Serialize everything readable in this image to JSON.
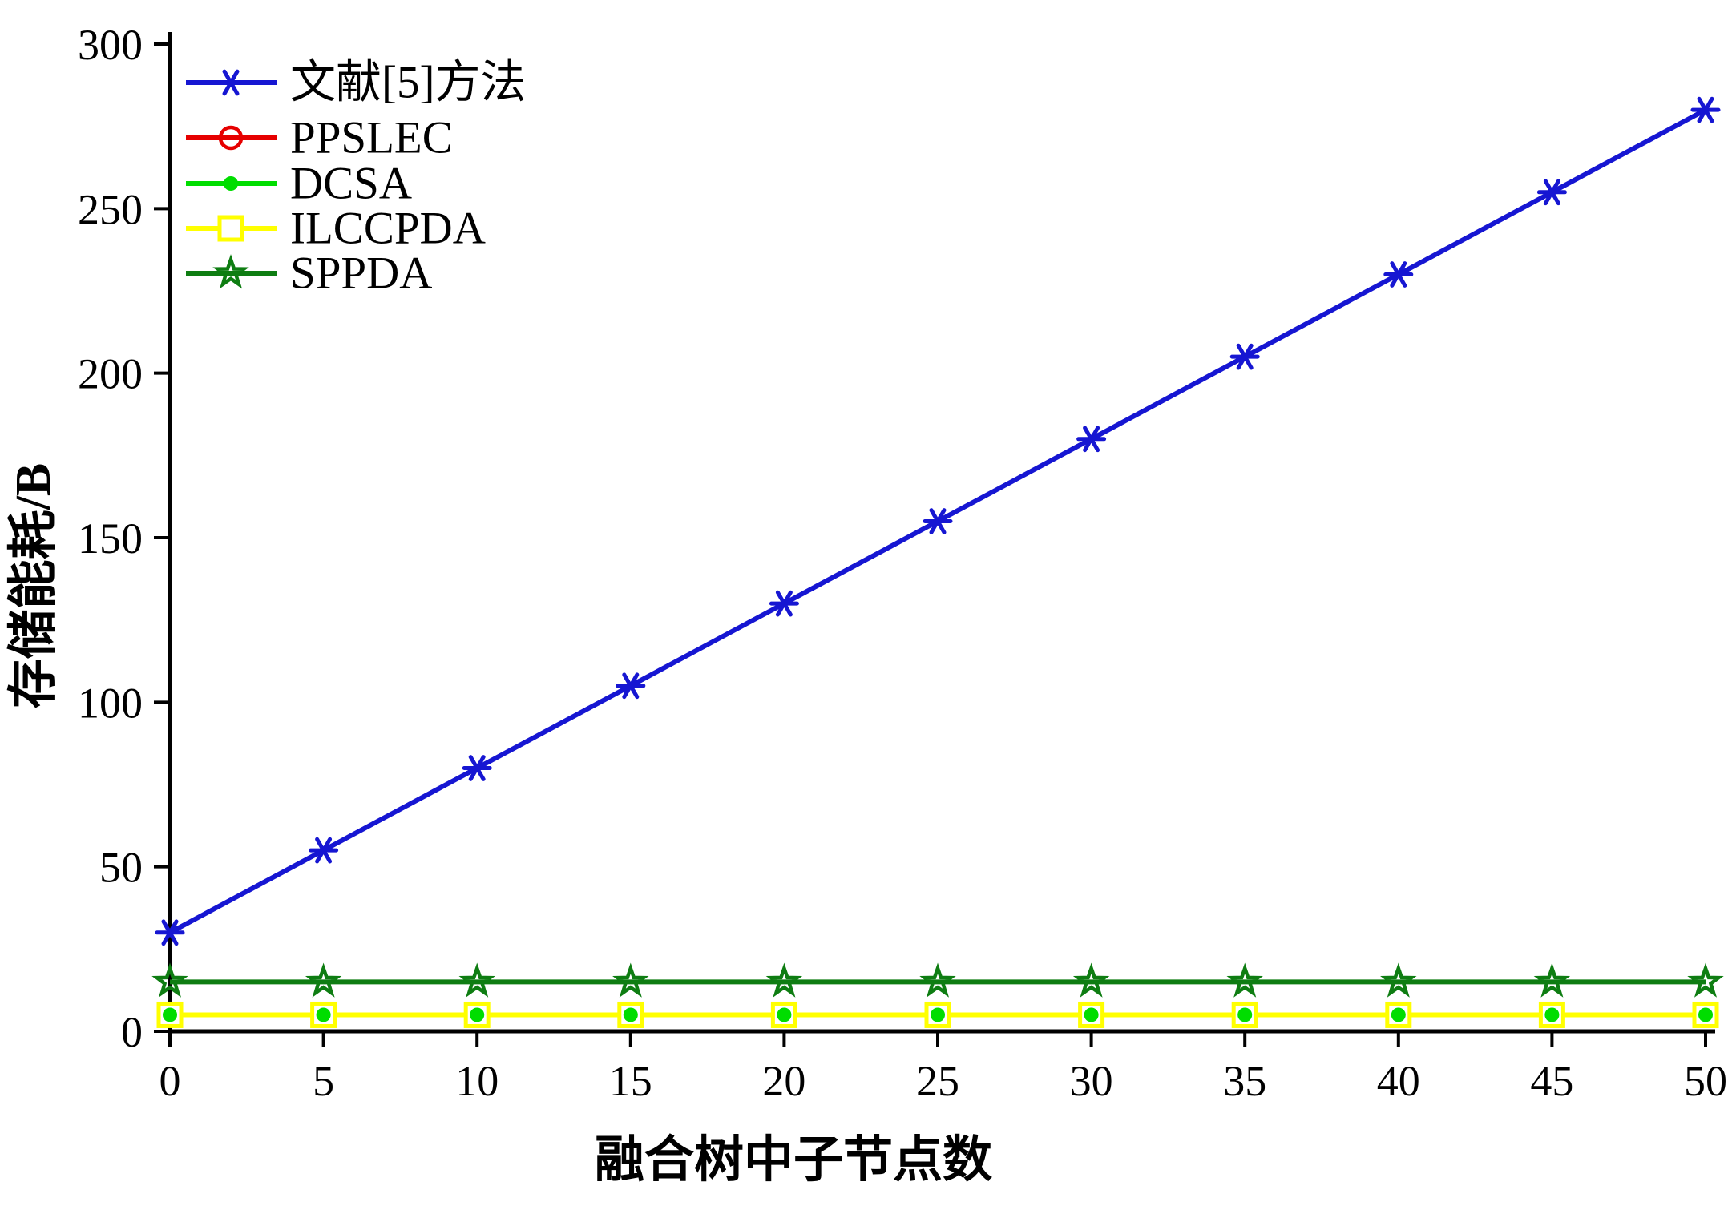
{
  "chart_data": {
    "type": "line",
    "title": "",
    "xlabel": "融合树中子节点数",
    "ylabel": "存储能耗/B",
    "xlim": [
      0,
      50
    ],
    "ylim": [
      0,
      300
    ],
    "xticks": [
      0,
      5,
      10,
      15,
      20,
      25,
      30,
      35,
      40,
      45,
      50
    ],
    "yticks": [
      0,
      50,
      100,
      150,
      200,
      250,
      300
    ],
    "grid": false,
    "legend_position": "top-left",
    "x": [
      0,
      5,
      10,
      15,
      20,
      25,
      30,
      35,
      40,
      45,
      50
    ],
    "series": [
      {
        "name": "文献[5]方法",
        "color": "#1616d2",
        "marker": "asterisk",
        "values": [
          30,
          55,
          80,
          105,
          130,
          155,
          180,
          205,
          230,
          255,
          280
        ]
      },
      {
        "name": "PPSLEC",
        "color": "#e60000",
        "marker": "open-circle",
        "values": [
          5,
          5,
          5,
          5,
          5,
          5,
          5,
          5,
          5,
          5,
          5
        ]
      },
      {
        "name": "DCSA",
        "color": "#00dd00",
        "marker": "filled-circle",
        "values": [
          5,
          5,
          5,
          5,
          5,
          5,
          5,
          5,
          5,
          5,
          5
        ]
      },
      {
        "name": "ILCCPDA",
        "color": "#ffff00",
        "marker": "open-square",
        "values": [
          5,
          5,
          5,
          5,
          5,
          5,
          5,
          5,
          5,
          5,
          5
        ]
      },
      {
        "name": "SPPDA",
        "color": "#0e7d12",
        "marker": "star",
        "values": [
          15,
          15,
          15,
          15,
          15,
          15,
          15,
          15,
          15,
          15,
          15
        ]
      }
    ]
  }
}
